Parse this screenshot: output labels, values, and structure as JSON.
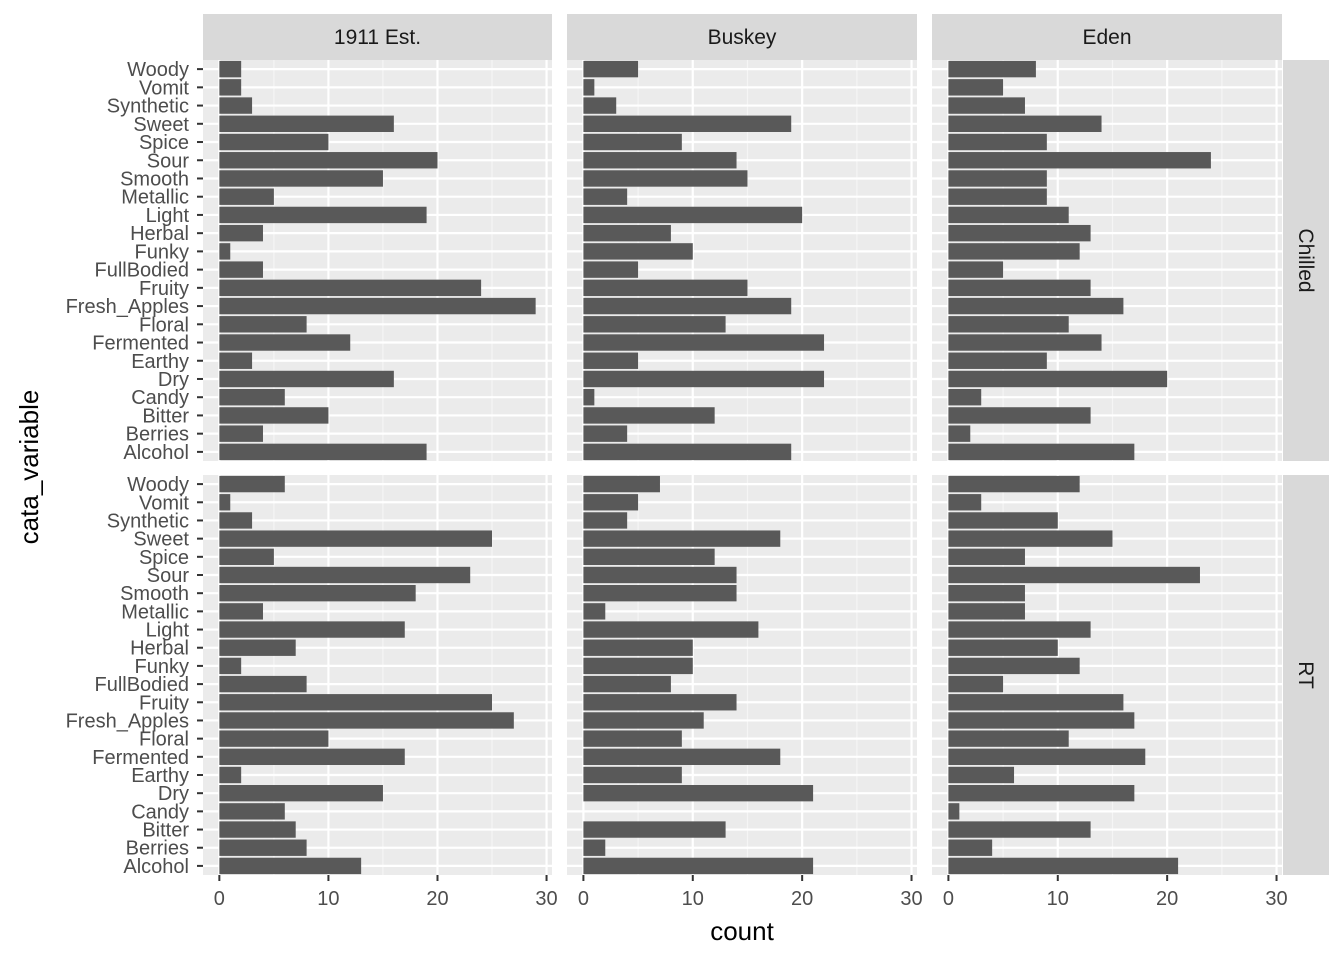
{
  "chart_data": {
    "type": "bar",
    "orientation": "horizontal",
    "facet_columns": [
      "1911 Est.",
      "Buskey",
      "Eden"
    ],
    "facet_rows": [
      "Chilled",
      "RT"
    ],
    "categories": [
      "Woody",
      "Vomit",
      "Synthetic",
      "Sweet",
      "Spice",
      "Sour",
      "Smooth",
      "Metallic",
      "Light",
      "Herbal",
      "Funky",
      "FullBodied",
      "Fruity",
      "Fresh_Apples",
      "Floral",
      "Fermented",
      "Earthy",
      "Dry",
      "Candy",
      "Bitter",
      "Berries",
      "Alcohol"
    ],
    "xlabel": "count",
    "ylabel": "cata_variable",
    "xlim": [
      -1.5,
      30.5
    ],
    "xticks": [
      0,
      10,
      20,
      30
    ],
    "grid": true,
    "bar_color": "#595959",
    "panel_background": "#ebebeb",
    "strip_background": "#d9d9d9",
    "values": {
      "Chilled": {
        "1911 Est.": [
          2,
          2,
          3,
          16,
          10,
          20,
          15,
          5,
          19,
          4,
          1,
          4,
          24,
          29,
          8,
          12,
          3,
          16,
          6,
          10,
          4,
          19
        ],
        "Buskey": [
          5,
          1,
          3,
          19,
          9,
          14,
          15,
          4,
          20,
          8,
          10,
          5,
          15,
          19,
          13,
          22,
          5,
          22,
          1,
          12,
          4,
          19
        ],
        "Eden": [
          8,
          5,
          7,
          14,
          9,
          24,
          9,
          9,
          11,
          13,
          12,
          5,
          13,
          16,
          11,
          14,
          9,
          20,
          3,
          13,
          2,
          17
        ]
      },
      "RT": {
        "1911 Est.": [
          6,
          1,
          3,
          25,
          5,
          23,
          18,
          4,
          17,
          7,
          2,
          8,
          25,
          27,
          10,
          17,
          2,
          15,
          6,
          7,
          8,
          13
        ],
        "Buskey": [
          7,
          5,
          4,
          18,
          12,
          14,
          14,
          2,
          16,
          10,
          10,
          8,
          14,
          11,
          9,
          18,
          9,
          21,
          0,
          13,
          2,
          21
        ],
        "Eden": [
          12,
          3,
          10,
          15,
          7,
          23,
          7,
          7,
          13,
          10,
          12,
          5,
          16,
          17,
          11,
          18,
          6,
          17,
          1,
          13,
          4,
          21
        ]
      }
    }
  }
}
